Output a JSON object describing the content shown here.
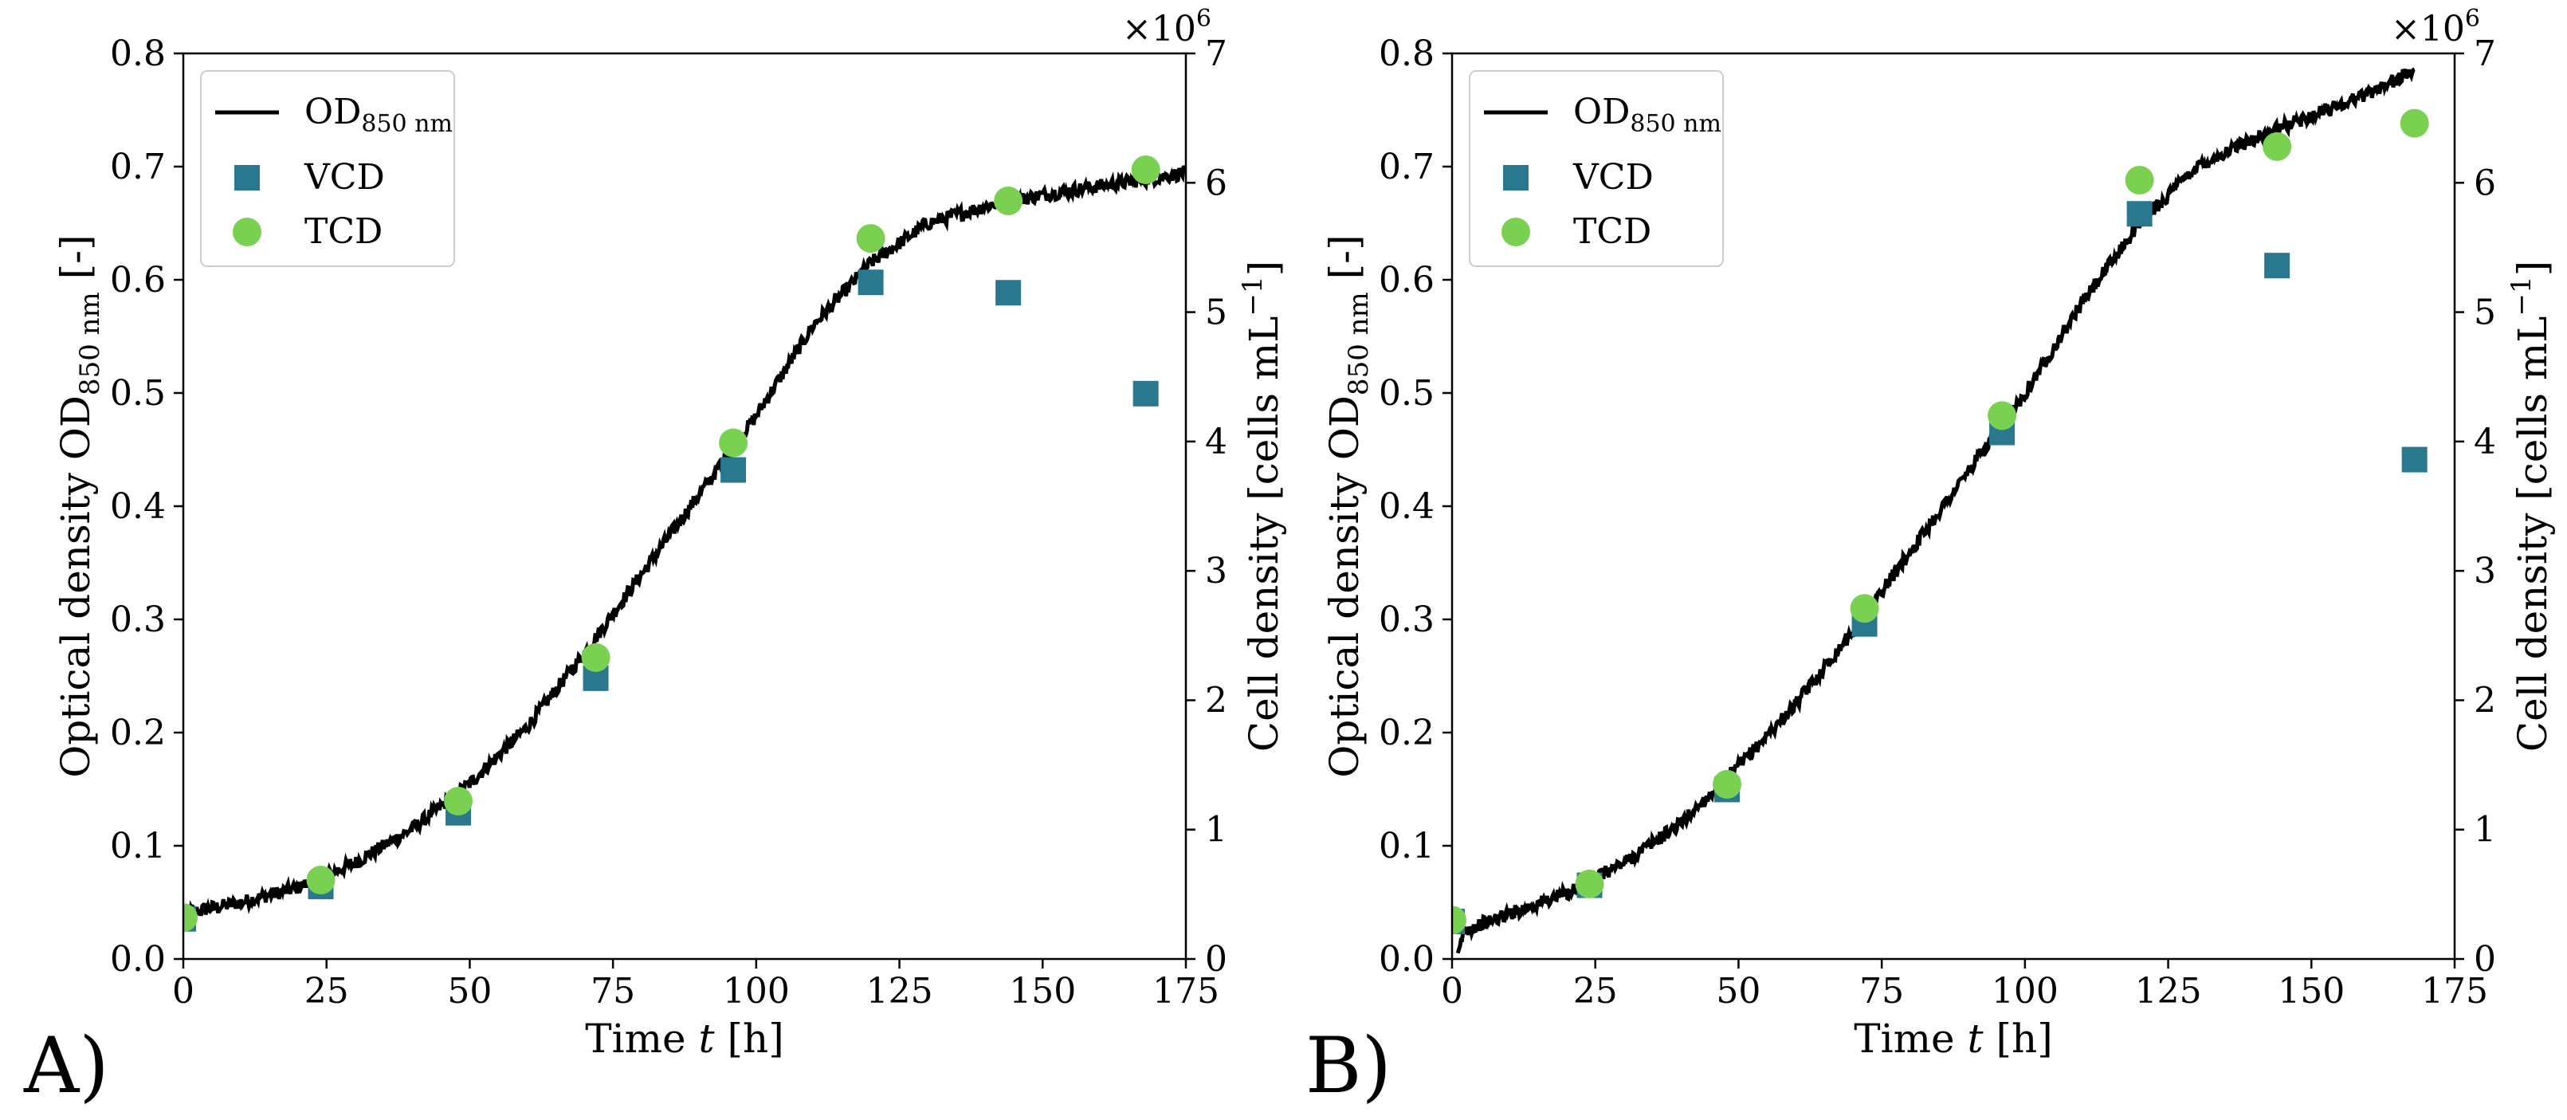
{
  "colors": {
    "od_line": "#000000",
    "vcd_marker": "#2a788e",
    "tcd_marker": "#7ad151",
    "legend_border": "#cccccc",
    "axis": "#000000"
  },
  "chart_data": [
    {
      "type": "line",
      "panel_label": "A)",
      "xlabel": "Time t [h]",
      "ylabel_left": "Optical density OD850 nm [-]",
      "ylabel_right": "Cell density [cells mL−1]",
      "right_axis_multiplier": "×10^6",
      "xlim": [
        0,
        175
      ],
      "ylim_left": [
        0.0,
        0.8
      ],
      "ylim_right": [
        0,
        7
      ],
      "x_ticks": [
        0,
        25,
        50,
        75,
        100,
        125,
        150,
        175
      ],
      "y_ticks_left": [
        0.0,
        0.1,
        0.2,
        0.3,
        0.4,
        0.5,
        0.6,
        0.7,
        0.8
      ],
      "y_ticks_right": [
        0,
        1,
        2,
        3,
        4,
        5,
        6,
        7
      ],
      "legend_position": "upper-left",
      "legend": [
        "OD850 nm",
        "VCD",
        "TCD"
      ],
      "od_curve": {
        "name": "OD850 nm",
        "x": [
          0,
          10,
          20,
          30,
          40,
          50,
          60,
          70,
          80,
          90,
          100,
          110,
          120,
          130,
          140,
          150,
          160,
          170,
          175
        ],
        "y": [
          0.04,
          0.05,
          0.063,
          0.085,
          0.115,
          0.155,
          0.205,
          0.27,
          0.34,
          0.41,
          0.48,
          0.56,
          0.615,
          0.65,
          0.665,
          0.675,
          0.683,
          0.69,
          0.695
        ]
      },
      "vcd": {
        "name": "VCD",
        "x": [
          0,
          24,
          48,
          72,
          96,
          120,
          144,
          168
        ],
        "y": [
          0.31,
          0.56,
          1.13,
          2.17,
          3.78,
          5.23,
          5.15,
          4.37
        ]
      },
      "tcd": {
        "name": "TCD",
        "x": [
          0,
          24,
          48,
          72,
          96,
          120,
          144,
          168
        ],
        "y": [
          0.32,
          0.61,
          1.22,
          2.33,
          3.99,
          5.57,
          5.86,
          6.1
        ]
      }
    },
    {
      "type": "line",
      "panel_label": "B)",
      "xlabel": "Time t [h]",
      "ylabel_left": "Optical density OD850 nm [-]",
      "ylabel_right": "Cell density [cells mL−1]",
      "right_axis_multiplier": "×10^6",
      "xlim": [
        0,
        175
      ],
      "ylim_left": [
        0.0,
        0.8
      ],
      "ylim_right": [
        0,
        7
      ],
      "x_ticks": [
        0,
        25,
        50,
        75,
        100,
        125,
        150,
        175
      ],
      "y_ticks_left": [
        0.0,
        0.1,
        0.2,
        0.3,
        0.4,
        0.5,
        0.6,
        0.7,
        0.8
      ],
      "y_ticks_right": [
        0,
        1,
        2,
        3,
        4,
        5,
        6,
        7
      ],
      "legend_position": "upper-left",
      "legend": [
        "OD850 nm",
        "VCD",
        "TCD"
      ],
      "od_curve": {
        "name": "OD850 nm",
        "x": [
          1,
          2,
          10,
          20,
          30,
          40,
          50,
          60,
          70,
          80,
          90,
          100,
          110,
          120,
          130,
          140,
          150,
          160,
          168
        ],
        "y": [
          0.0,
          0.025,
          0.04,
          0.058,
          0.085,
          0.12,
          0.17,
          0.225,
          0.29,
          0.36,
          0.43,
          0.5,
          0.58,
          0.65,
          0.7,
          0.725,
          0.745,
          0.765,
          0.785
        ]
      },
      "vcd": {
        "name": "VCD",
        "x": [
          0,
          24,
          48,
          72,
          96,
          120,
          144,
          168
        ],
        "y": [
          0.29,
          0.57,
          1.31,
          2.59,
          4.07,
          5.76,
          5.36,
          3.86
        ]
      },
      "tcd": {
        "name": "TCD",
        "x": [
          0,
          24,
          48,
          72,
          96,
          120,
          144,
          168
        ],
        "y": [
          0.3,
          0.58,
          1.35,
          2.71,
          4.2,
          6.02,
          6.28,
          6.46
        ]
      }
    }
  ]
}
